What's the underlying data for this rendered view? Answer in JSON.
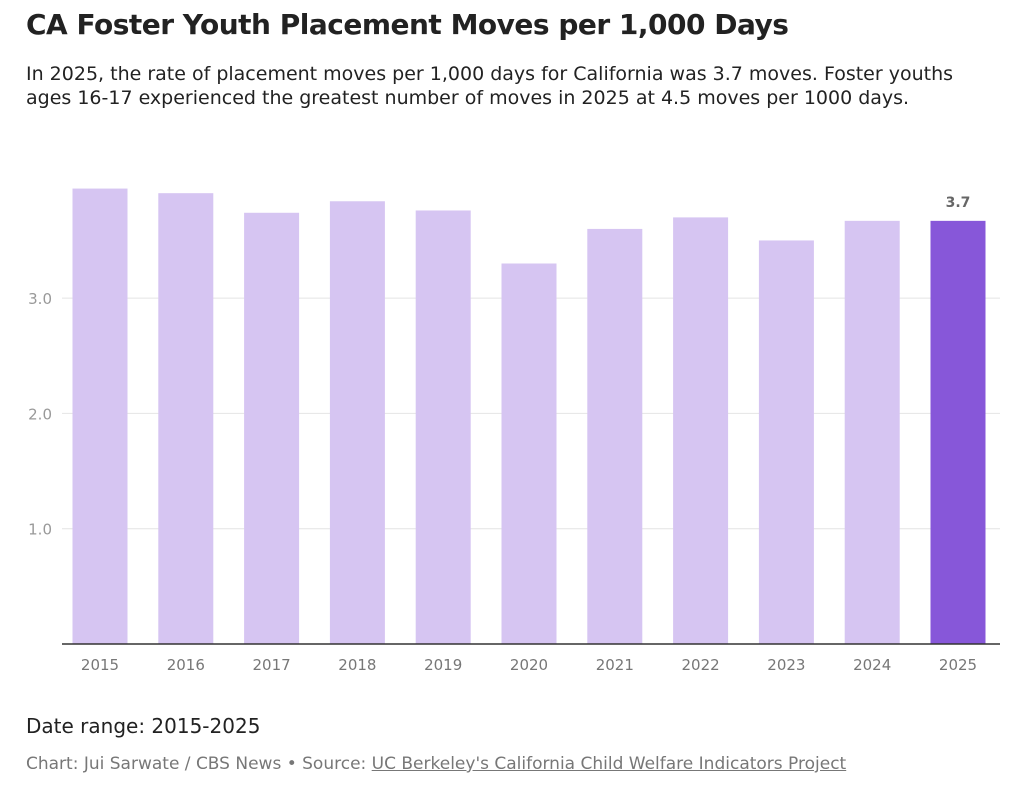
{
  "title": "CA Foster Youth Placement Moves per 1,000 Days",
  "subtitle": "In 2025, the rate of placement moves per 1,000 days for California was 3.7 moves. Foster youths ages 16-17 experienced the greatest number of moves in 2025 at 4.5 moves per 1000 days.",
  "footer": {
    "date_range": "Date range: 2015-2025",
    "credit": "Chart: Jui Sarwate / CBS News • Source: ",
    "source_link": "UC Berkeley's California Child Welfare Indicators Project"
  },
  "colors": {
    "bar": "#d6c5f2",
    "highlight": "#8757d9"
  },
  "chart_data": {
    "type": "bar",
    "categories": [
      "2015",
      "2016",
      "2017",
      "2018",
      "2019",
      "2020",
      "2021",
      "2022",
      "2023",
      "2024",
      "2025"
    ],
    "values": [
      3.95,
      3.91,
      3.74,
      3.84,
      3.76,
      3.3,
      3.6,
      3.7,
      3.5,
      3.67,
      3.67
    ],
    "highlight_index": 10,
    "data_label": "3.7",
    "yticks": [
      {
        "v": 1,
        "label": "1.0"
      },
      {
        "v": 2,
        "label": "2.0"
      },
      {
        "v": 3,
        "label": "3.0"
      }
    ],
    "ylim": [
      0,
      4
    ],
    "grid": true,
    "xlabel": "",
    "ylabel": ""
  }
}
